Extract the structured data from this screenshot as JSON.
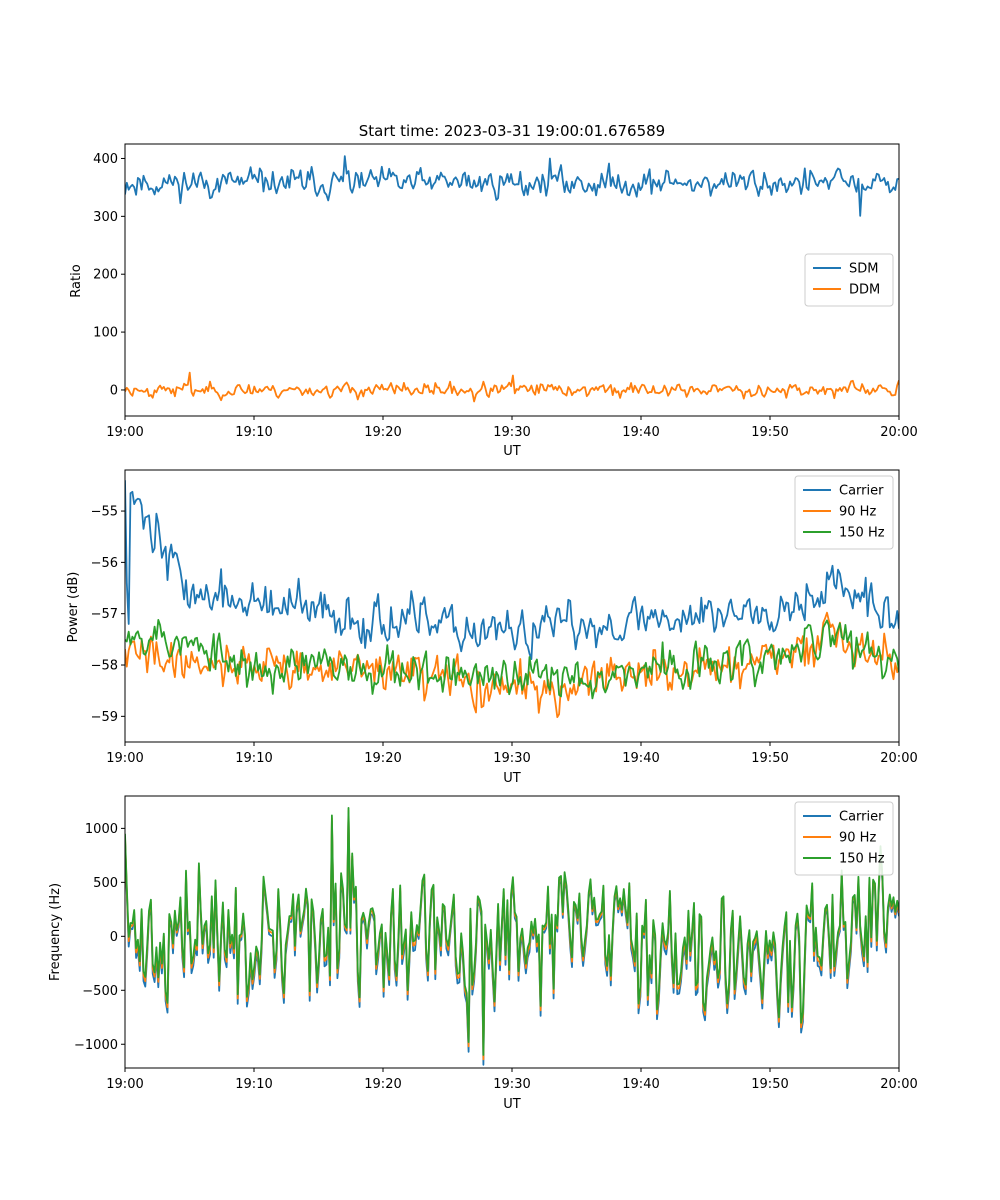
{
  "chart_data": [
    {
      "type": "line",
      "title": "Start time: 2023-03-31 19:00:01.676589",
      "xlabel": "UT",
      "ylabel": "Ratio",
      "x_ticks": [
        "19:00",
        "19:10",
        "19:20",
        "19:30",
        "19:40",
        "19:50",
        "20:00"
      ],
      "xlim": [
        "19:00",
        "20:00"
      ],
      "y_ticks": [
        0,
        100,
        200,
        300,
        400
      ],
      "ylim": [
        -45,
        425
      ],
      "grid": false,
      "legend": "center-right",
      "series": [
        {
          "name": "SDM",
          "color": "#1f77b4",
          "mean": 358,
          "amplitude": 16,
          "seed": 11,
          "x": [
            "19:05",
            "19:17",
            "19:33",
            "19:57"
          ],
          "values": [
            350,
            404,
            400,
            301
          ]
        },
        {
          "name": "DDM",
          "color": "#ff7f0e",
          "mean": 0,
          "amplitude": 8,
          "seed": 23,
          "x": [
            "19:05",
            "19:27",
            "19:30"
          ],
          "values": [
            30,
            -20,
            25
          ]
        }
      ]
    },
    {
      "type": "line",
      "title": "",
      "xlabel": "UT",
      "ylabel": "Power (dB)",
      "x_ticks": [
        "19:00",
        "19:10",
        "19:20",
        "19:30",
        "19:40",
        "19:50",
        "20:00"
      ],
      "xlim": [
        "19:00",
        "20:00"
      ],
      "y_ticks": [
        -59,
        -58,
        -57,
        -56,
        -55
      ],
      "ylim": [
        -59.5,
        -54.2
      ],
      "grid": false,
      "legend": "top-right",
      "series": [
        {
          "name": "Carrier",
          "color": "#1f77b4",
          "amplitude": 0.3,
          "seed": 37,
          "x": [
            "19:00",
            "19:05",
            "19:15",
            "19:30",
            "19:40",
            "19:50",
            "19:55",
            "20:00"
          ],
          "values": [
            -54.4,
            -56.6,
            -57.0,
            -57.4,
            -57.1,
            -56.9,
            -56.4,
            -57.2
          ]
        },
        {
          "name": "90 Hz",
          "color": "#ff7f0e",
          "amplitude": 0.28,
          "seed": 41,
          "x": [
            "19:00",
            "19:10",
            "19:20",
            "19:30",
            "19:40",
            "19:50",
            "19:55",
            "20:00"
          ],
          "values": [
            -57.8,
            -58.0,
            -58.1,
            -58.5,
            -58.2,
            -57.9,
            -57.5,
            -58.0
          ]
        },
        {
          "name": "150 Hz",
          "color": "#2ca02c",
          "amplitude": 0.28,
          "seed": 53,
          "x": [
            "19:00",
            "19:10",
            "19:20",
            "19:30",
            "19:40",
            "19:50",
            "19:55",
            "20:00"
          ],
          "values": [
            -57.2,
            -58.1,
            -58.0,
            -58.3,
            -58.1,
            -57.9,
            -57.4,
            -58.0
          ]
        }
      ]
    },
    {
      "type": "line",
      "title": "",
      "xlabel": "UT",
      "ylabel": "Frequency (Hz)",
      "x_ticks": [
        "19:00",
        "19:10",
        "19:20",
        "19:30",
        "19:40",
        "19:50",
        "20:00"
      ],
      "xlim": [
        "19:00",
        "20:00"
      ],
      "y_ticks": [
        -1000,
        -500,
        0,
        500,
        1000
      ],
      "ylim": [
        -1220,
        1300
      ],
      "grid": false,
      "legend": "top-right",
      "series": [
        {
          "name": "Carrier",
          "color": "#1f77b4",
          "offset": -90,
          "scale": 1.0
        },
        {
          "name": "90 Hz",
          "color": "#ff7f0e",
          "offset": -40,
          "scale": 1.0
        },
        {
          "name": "150 Hz",
          "color": "#2ca02c",
          "offset": 0,
          "scale": 1.0
        }
      ],
      "shared_signal": {
        "mean": 0,
        "amplitude": 400,
        "seed": 71,
        "max": 1190,
        "min": -1100
      }
    }
  ]
}
